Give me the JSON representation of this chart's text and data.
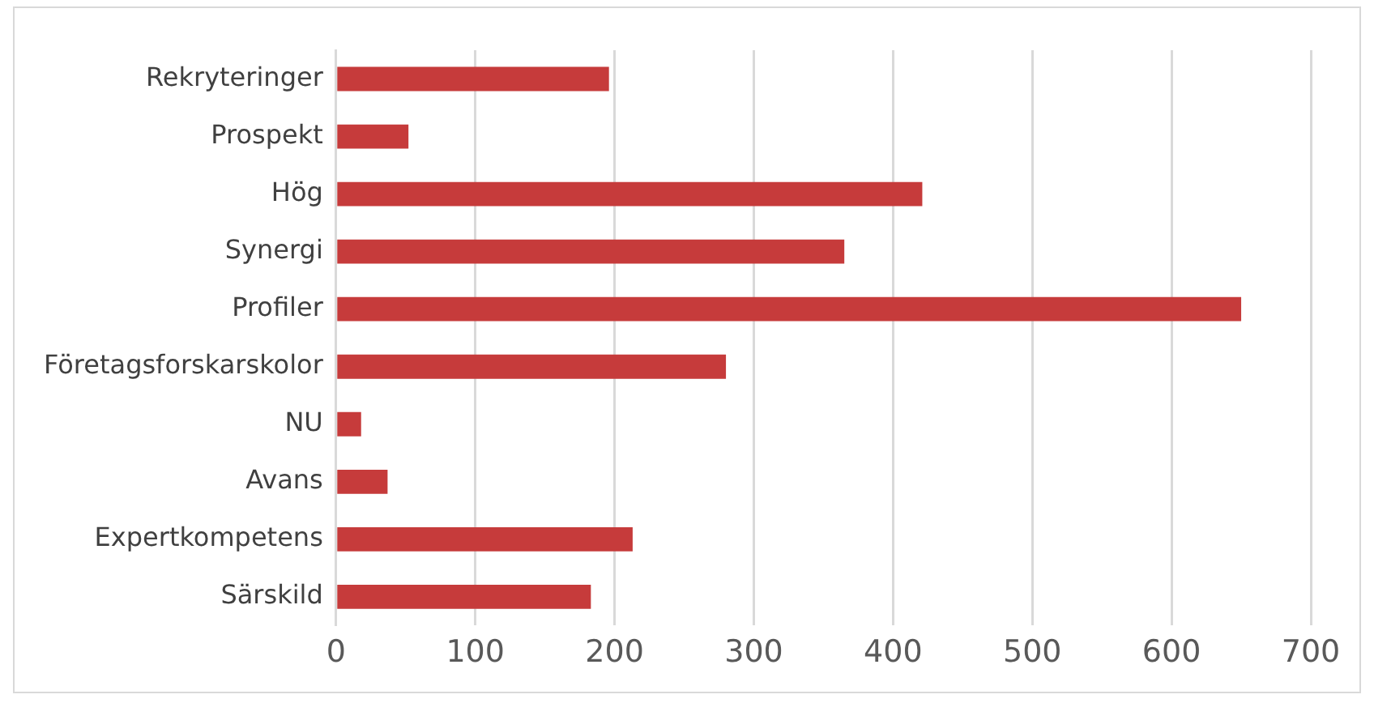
{
  "chart_data": {
    "type": "bar",
    "orientation": "horizontal",
    "categories": [
      "Rekryteringer",
      "Prospekt",
      "Hög",
      "Synergi",
      "Profiler",
      "Företagsforskarskolor",
      "NU",
      "Avans",
      "Expertkompetens",
      "Särskild"
    ],
    "values": [
      196,
      52,
      421,
      365,
      650,
      280,
      18,
      37,
      213,
      183
    ],
    "color": "#c63b3b",
    "xlim": [
      0,
      700
    ],
    "xticks": [
      0,
      100,
      200,
      300,
      400,
      500,
      600,
      700
    ],
    "grid": "x",
    "legend": false
  }
}
